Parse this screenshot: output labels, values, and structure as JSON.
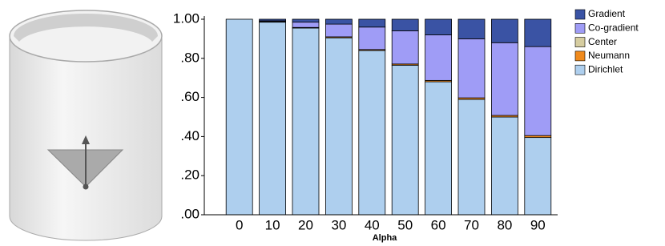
{
  "chart_data": {
    "type": "stacked-bar",
    "x_label": "Alpha",
    "categories": [
      "0",
      "10",
      "20",
      "30",
      "40",
      "50",
      "60",
      "70",
      "80",
      "90"
    ],
    "series": [
      {
        "name": "Dirichlet",
        "color": "#aecfee",
        "values": [
          1.0,
          0.985,
          0.955,
          0.905,
          0.84,
          0.765,
          0.68,
          0.59,
          0.5,
          0.395
        ]
      },
      {
        "name": "Neumann",
        "color": "#f08a1c",
        "values": [
          0,
          0.003,
          0.003,
          0.005,
          0.005,
          0.006,
          0.007,
          0.008,
          0.008,
          0.01
        ]
      },
      {
        "name": "Center",
        "color": "#d6cda0",
        "values": [
          0,
          0,
          0,
          0,
          0,
          0,
          0,
          0,
          0,
          0
        ]
      },
      {
        "name": "Co-gradient",
        "color": "#9f9cf6",
        "values": [
          0,
          0.004,
          0.027,
          0.065,
          0.115,
          0.17,
          0.233,
          0.302,
          0.372,
          0.455
        ]
      },
      {
        "name": "Gradient",
        "color": "#3a53a4",
        "values": [
          0,
          0.008,
          0.015,
          0.025,
          0.04,
          0.059,
          0.08,
          0.1,
          0.12,
          0.14
        ]
      }
    ],
    "ylim": [
      0,
      1
    ],
    "yticks": [
      {
        "value": 0,
        "label": ".00"
      },
      {
        "value": 0.2,
        "label": ".20"
      },
      {
        "value": 0.4,
        "label": ".40"
      },
      {
        "value": 0.6,
        "label": ".60"
      },
      {
        "value": 0.8,
        "label": ".80"
      },
      {
        "value": 1,
        "label": "1.00"
      }
    ]
  }
}
